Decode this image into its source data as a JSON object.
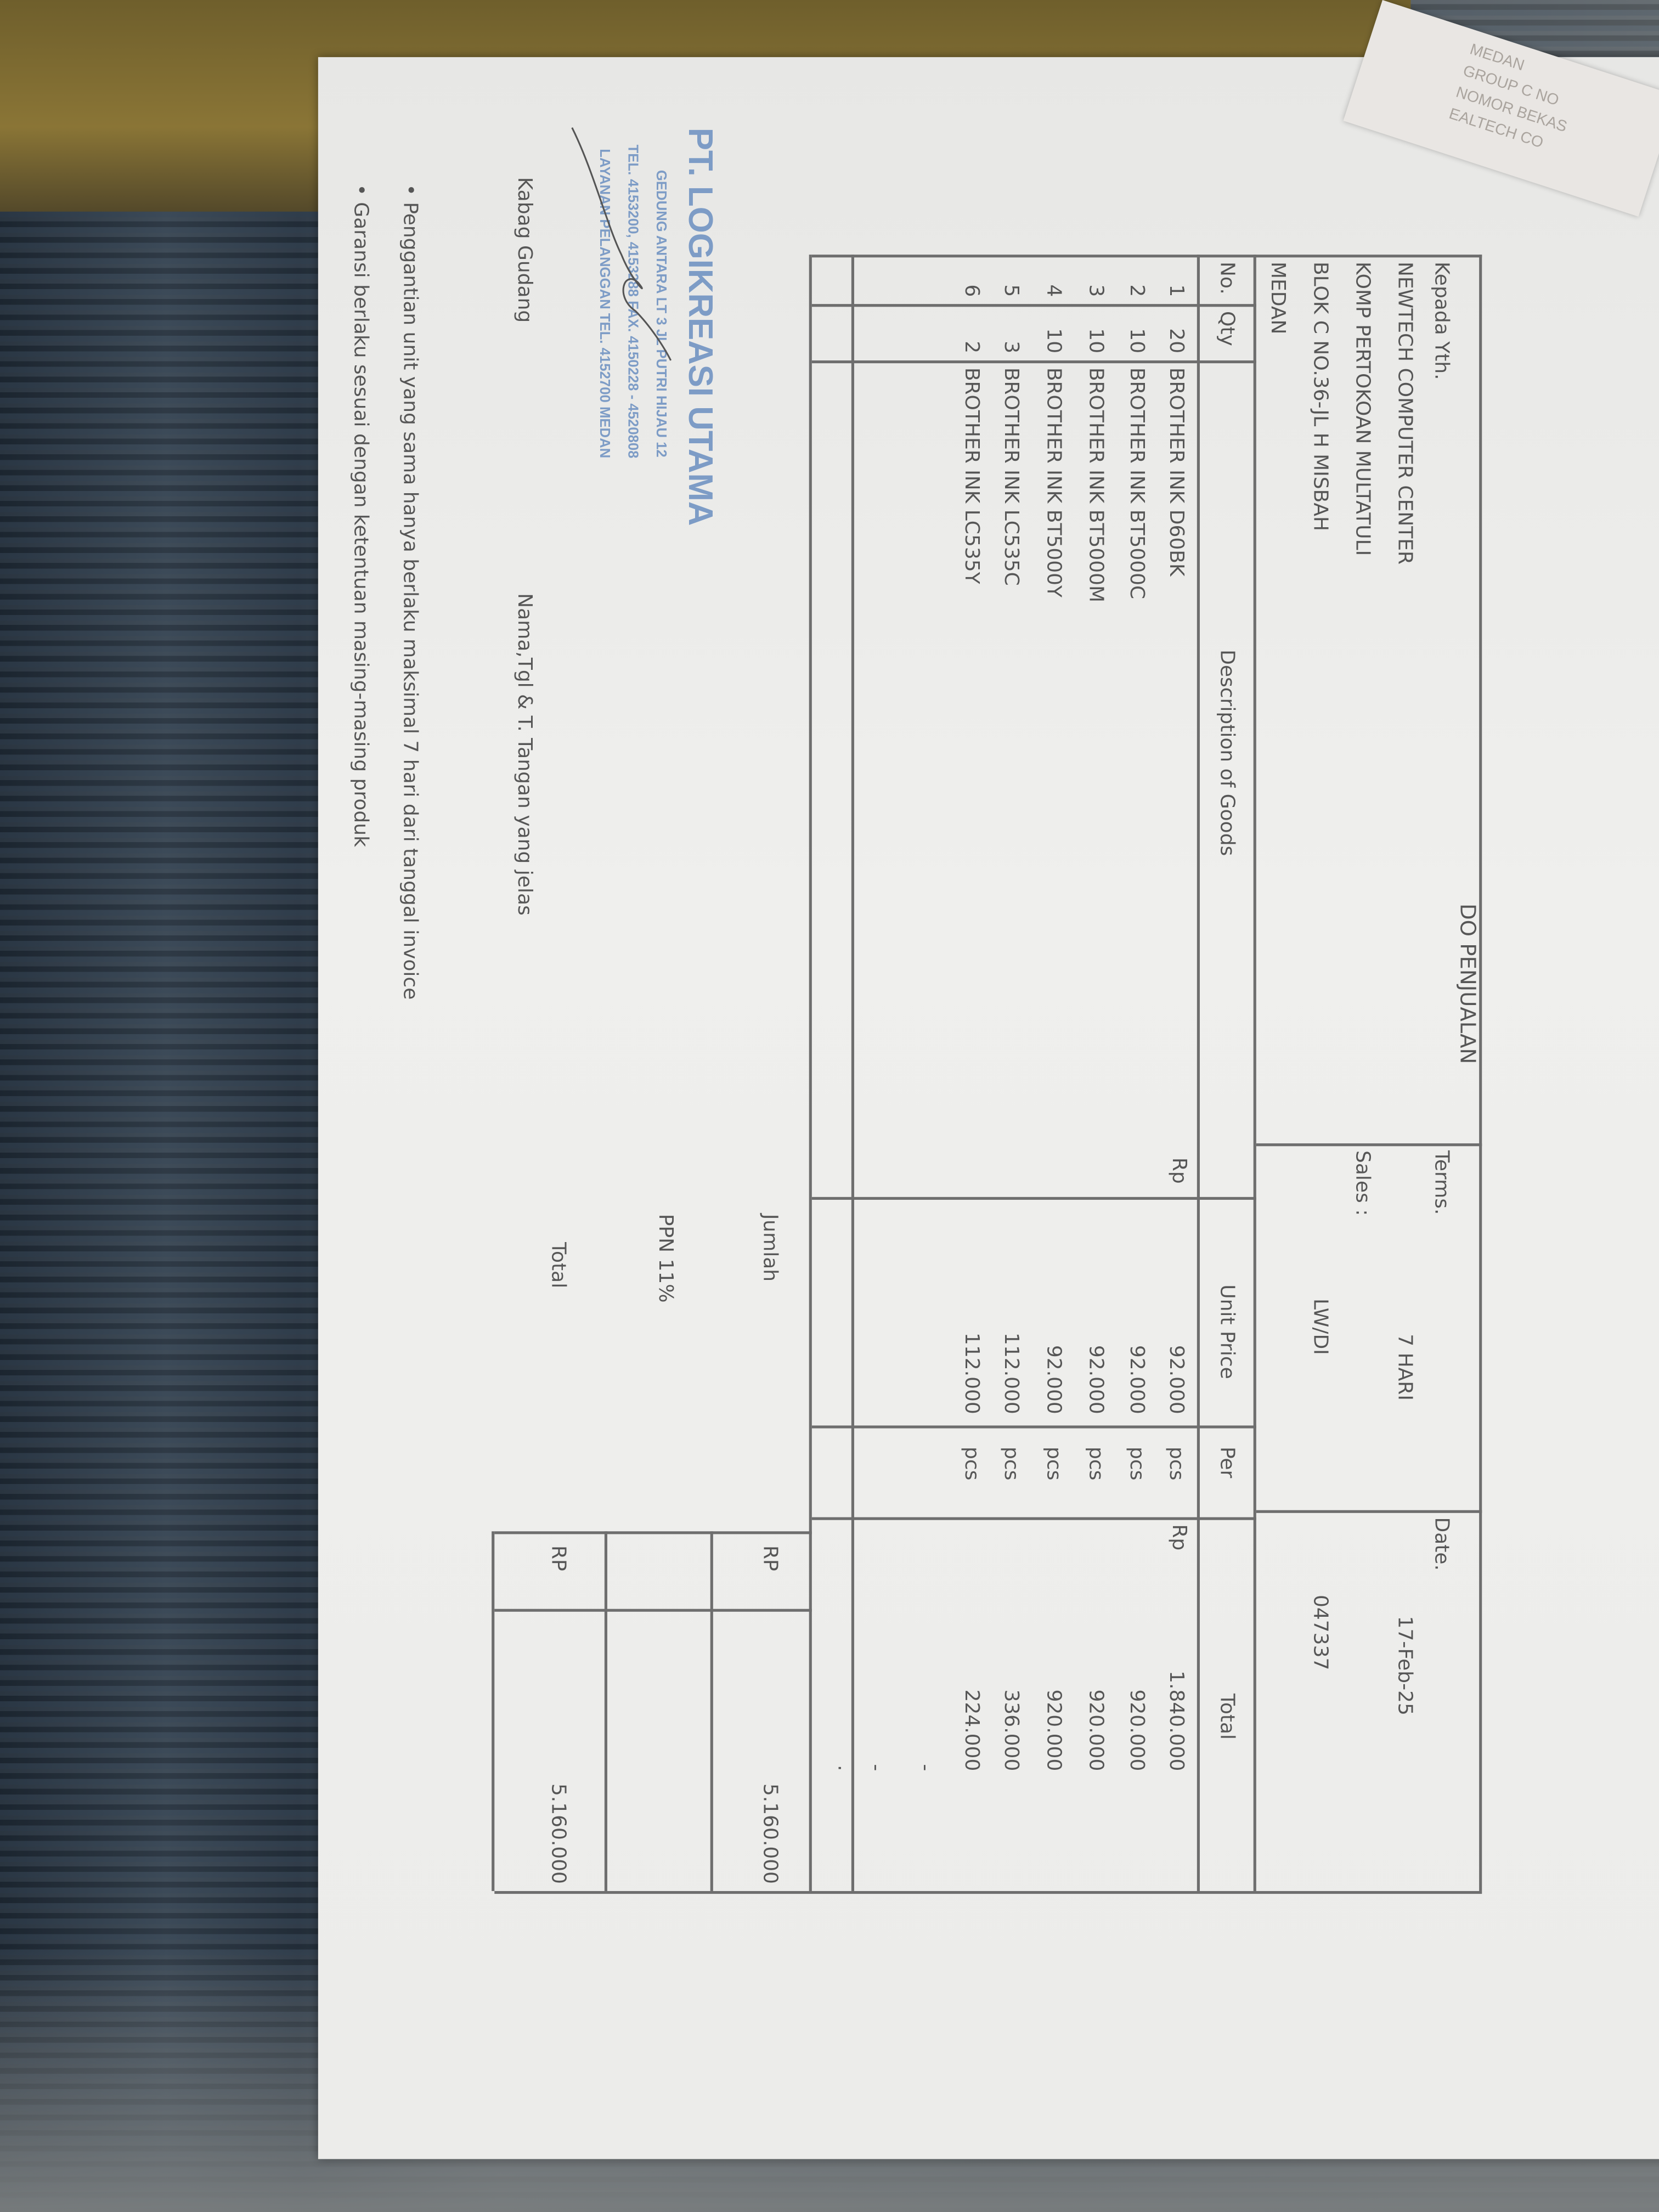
{
  "document": {
    "title": "DO PENJUALAN",
    "recipient": {
      "label": "Kepada Yth.",
      "lines": [
        "NEWTECH COMPUTER CENTER",
        "KOMP PERTOKOAN MULTATULI",
        "BLOK C NO.36-JL H MISBAH",
        "MEDAN"
      ]
    },
    "terms_label": "Terms.",
    "terms_value": "7 HARI",
    "sales_label": "Sales :",
    "sales_value": "LW/DI",
    "date_label": "Date.",
    "date_value": "17-Feb-25",
    "doc_number": "047337",
    "columns": {
      "no": "No.",
      "qty": "Qty",
      "description": "Description of Goods",
      "unit_price": "Unit Price",
      "per": "Per",
      "total": "Total"
    },
    "currency_unit_price": "Rp",
    "currency_total": "Rp",
    "items": [
      {
        "no": "1",
        "qty": "20",
        "description": "BROTHER INK D60BK",
        "unit_price": "92.000",
        "per": "pcs",
        "total": "1.840.000"
      },
      {
        "no": "2",
        "qty": "10",
        "description": "BROTHER INK BT5000C",
        "unit_price": "92.000",
        "per": "pcs",
        "total": "920.000"
      },
      {
        "no": "3",
        "qty": "10",
        "description": "BROTHER INK BT5000M",
        "unit_price": "92.000",
        "per": "pcs",
        "total": "920.000"
      },
      {
        "no": "4",
        "qty": "10",
        "description": "BROTHER INK BT5000Y",
        "unit_price": "92.000",
        "per": "pcs",
        "total": "920.000"
      },
      {
        "no": "5",
        "qty": "3",
        "description": "BROTHER INK LC535C",
        "unit_price": "112.000",
        "per": "pcs",
        "total": "336.000"
      },
      {
        "no": "6",
        "qty": "2",
        "description": "BROTHER INK LC535Y",
        "unit_price": "112.000",
        "per": "pcs",
        "total": "224.000"
      }
    ],
    "empty_row_marks": [
      "-",
      "-",
      "."
    ],
    "summary": {
      "jumlah_label": "Jumlah",
      "jumlah_currency": "RP",
      "jumlah_value": "5.160.000",
      "ppn_label": "PPN 11%",
      "total_label": "Total",
      "total_currency": "RP",
      "total_value": "5.160.000"
    },
    "signature": {
      "role": "Kabag Gudang",
      "instruction": "Nama,Tgl & T. Tangan yang jelas"
    },
    "stamp": {
      "company": "PT. LOGIKREASI UTAMA",
      "line1": "GEDUNG ANTARA LT 3 JL PUTRI HIJAU 12",
      "line2": "TEL. 4153200, 4153288 FAX. 4150228 - 4520808",
      "line3": "LAYANAN PELANGGAN TEL. 4152700 MEDAN"
    },
    "notes": [
      "Penggantian unit yang sama hanya berlaku maksimal 7 hari dari tanggal invoice",
      "Garansi berlaku sesuai dengan ketentuan masing-masing produk"
    ],
    "bullet": "•"
  },
  "background_paper_text": [
    "MEDAN",
    "GROUP C NO",
    "NOMOR BEKAS",
    "EALTECH CO"
  ]
}
